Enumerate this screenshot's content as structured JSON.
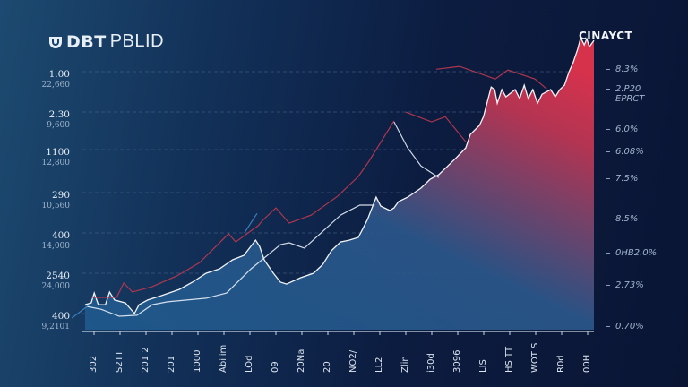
{
  "header": {
    "logo_icon": "shield-logo-icon",
    "title_bold": "DBT",
    "title_light": "PBLID",
    "corner_label": "CINAYCT"
  },
  "colors": {
    "area_low": "#1f5a8e",
    "area_high": "#cf3350",
    "red_line": "#c0394f",
    "white_line": "#e6eef8",
    "blue_line": "#3f86c4",
    "grid": "#4a6a8c"
  },
  "chart_data": {
    "type": "area",
    "grid": true,
    "xlim": [
      -3,
      100
    ],
    "ylim": [
      0,
      115
    ],
    "left_tick_labels": [
      {
        "primary": "1.00",
        "secondary": "22,660"
      },
      {
        "primary": "2.30",
        "secondary": "9,600"
      },
      {
        "primary": "1100",
        "secondary": "12,800"
      },
      {
        "primary": "290",
        "secondary": "10,560"
      },
      {
        "primary": "400",
        "secondary": "14,000"
      },
      {
        "primary": "2540",
        "secondary": "24,000"
      },
      {
        "primary": "400",
        "secondary": "9,2101"
      }
    ],
    "right_tick_labels": [
      "8.3%",
      "2.P20",
      "EPRCT",
      "6.0%",
      "6.08%",
      "7.5%",
      "8.5%",
      "0HB2.0%",
      "2.73%",
      "0.70%"
    ],
    "x_tick_labels": [
      "302",
      "S2TT",
      "201 2",
      "201",
      "1000",
      "Abiiim",
      "LOd",
      "09",
      "20Na",
      "20",
      "NO2/",
      "LL2",
      "Zlin",
      "i30d",
      "3096",
      "LIS",
      "HS TT",
      "WOT S",
      "R0d",
      "00H"
    ],
    "area_series": [
      [
        0,
        9.7
      ],
      [
        1.2,
        10.4
      ],
      [
        1.8,
        14.2
      ],
      [
        2.6,
        9.7
      ],
      [
        4.0,
        9.7
      ],
      [
        4.8,
        14.6
      ],
      [
        5.8,
        11.5
      ],
      [
        7.9,
        10.4
      ],
      [
        9.7,
        6.3
      ],
      [
        10.6,
        9.7
      ],
      [
        12.3,
        11.5
      ],
      [
        15.0,
        13.2
      ],
      [
        18.5,
        15.6
      ],
      [
        21.1,
        18.4
      ],
      [
        23.8,
        21.9
      ],
      [
        26.4,
        23.6
      ],
      [
        29.0,
        27.1
      ],
      [
        31.2,
        28.8
      ],
      [
        33.5,
        34.7
      ],
      [
        34.3,
        32.3
      ],
      [
        35.2,
        27.1
      ],
      [
        37.0,
        21.9
      ],
      [
        38.4,
        18.4
      ],
      [
        39.6,
        17.7
      ],
      [
        42.3,
        20.1
      ],
      [
        44.9,
        21.9
      ],
      [
        46.7,
        25.3
      ],
      [
        48.4,
        30.6
      ],
      [
        50.2,
        34.0
      ],
      [
        51.9,
        34.7
      ],
      [
        53.7,
        35.8
      ],
      [
        54.6,
        39.2
      ],
      [
        55.5,
        42.7
      ],
      [
        57.2,
        51.4
      ],
      [
        58.1,
        47.9
      ],
      [
        59.9,
        46.2
      ],
      [
        60.7,
        47.2
      ],
      [
        61.6,
        49.7
      ],
      [
        63.4,
        51.4
      ],
      [
        66.0,
        54.9
      ],
      [
        67.8,
        58.3
      ],
      [
        69.5,
        60.1
      ],
      [
        71.3,
        63.5
      ],
      [
        73.1,
        67.0
      ],
      [
        74.8,
        70.5
      ],
      [
        75.7,
        75.7
      ],
      [
        77.5,
        79.2
      ],
      [
        78.3,
        82.6
      ],
      [
        79.2,
        89.6
      ],
      [
        79.8,
        94.1
      ],
      [
        80.5,
        93.1
      ],
      [
        81.0,
        87.8
      ],
      [
        81.9,
        93.1
      ],
      [
        82.7,
        90.3
      ],
      [
        84.5,
        93.1
      ],
      [
        85.4,
        89.6
      ],
      [
        86.3,
        94.8
      ],
      [
        87.1,
        89.6
      ],
      [
        88.0,
        93.1
      ],
      [
        88.9,
        87.8
      ],
      [
        89.8,
        91.3
      ],
      [
        91.5,
        93.1
      ],
      [
        92.4,
        90.3
      ],
      [
        93.3,
        93.1
      ],
      [
        94.2,
        94.8
      ],
      [
        95.1,
        100
      ],
      [
        95.9,
        103.5
      ],
      [
        96.8,
        108.7
      ],
      [
        97.4,
        113.2
      ],
      [
        98.1,
        110.4
      ],
      [
        98.6,
        112.8
      ],
      [
        99.1,
        109.7
      ],
      [
        100,
        112.2
      ]
    ],
    "lines": [
      {
        "color_key": "white_line",
        "points": [
          [
            0.4,
            9.0
          ],
          [
            3.2,
            7.9
          ],
          [
            6.7,
            5.2
          ],
          [
            10.2,
            5.6
          ],
          [
            13.2,
            9.7
          ],
          [
            16.2,
            10.8
          ],
          [
            23.8,
            12.2
          ],
          [
            27.8,
            14.2
          ],
          [
            32.6,
            23.6
          ],
          [
            38.4,
            33.0
          ],
          [
            40.1,
            33.7
          ],
          [
            43.1,
            31.6
          ],
          [
            50.2,
            44.4
          ],
          [
            54.0,
            48.3
          ],
          [
            56.9,
            48.3
          ]
        ]
      },
      {
        "color_key": "white_line",
        "points": [
          [
            60.7,
            80.6
          ],
          [
            63.4,
            70.5
          ],
          [
            66.0,
            63.5
          ],
          [
            69.5,
            59.0
          ]
        ]
      },
      {
        "color_key": "red_line",
        "points": [
          [
            1.4,
            12.5
          ],
          [
            6.2,
            12.5
          ],
          [
            7.6,
            18.1
          ],
          [
            9.3,
            14.6
          ],
          [
            13.2,
            16.7
          ],
          [
            18.0,
            20.8
          ],
          [
            22.5,
            26.0
          ],
          [
            28.2,
            37.2
          ],
          [
            29.6,
            34.0
          ],
          [
            32.0,
            37.5
          ],
          [
            34.0,
            40.3
          ],
          [
            34.9,
            42.4
          ],
          [
            37.5,
            47.2
          ],
          [
            40.1,
            41.3
          ],
          [
            44.4,
            44.4
          ],
          [
            49.6,
            51.7
          ],
          [
            53.7,
            59.4
          ],
          [
            55.8,
            65.3
          ],
          [
            60.7,
            81.0
          ]
        ]
      },
      {
        "color_key": "red_line",
        "points": [
          [
            63.0,
            84.4
          ],
          [
            68.1,
            80.6
          ],
          [
            70.8,
            82.6
          ],
          [
            74.8,
            72.9
          ]
        ]
      },
      {
        "color_key": "red_line",
        "points": [
          [
            69.0,
            101.0
          ],
          [
            73.6,
            102.1
          ],
          [
            80.6,
            97.2
          ],
          [
            83.1,
            100.7
          ],
          [
            88.4,
            97.2
          ],
          [
            90.7,
            93.4
          ]
        ]
      },
      {
        "color_key": "blue_line",
        "points": [
          [
            -2.6,
            4.5
          ],
          [
            0.4,
            9.0
          ]
        ]
      },
      {
        "color_key": "blue_line",
        "points": [
          [
            31.3,
            37.5
          ],
          [
            33.8,
            45.1
          ]
        ]
      }
    ]
  }
}
